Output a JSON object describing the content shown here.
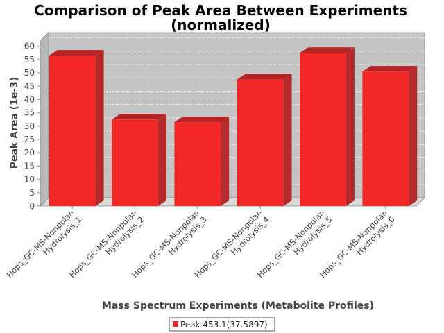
{
  "chart_data": {
    "type": "bar",
    "title_line1": "Comparison of Peak Area Between Experiments",
    "title_line2": "(normalized)",
    "xlabel": "Mass Spectrum Experiments (Metabolite Profiles)",
    "ylabel": "Peak Area (1e-3)",
    "ylim": [
      0,
      62
    ],
    "yticks": [
      0,
      5,
      10,
      15,
      20,
      25,
      30,
      35,
      40,
      45,
      50,
      55,
      60
    ],
    "grid": true,
    "legend_position": "bottom",
    "categories": [
      [
        "Hops_GC-MS-Nonpolar-",
        "Hydrolysis_1"
      ],
      [
        "Hops_GC-MS-Nonpolar-",
        "Hydrolysis_2"
      ],
      [
        "Hops_GC-MS-Nonpolar-",
        "Hydrolysis_3"
      ],
      [
        "Hops_GC-MS-Nonpolar-",
        "Hydrolysis_4"
      ],
      [
        "Hops_GC-MS-Nonpolar-",
        "Hydrolysis_5"
      ],
      [
        "Hops_GC-MS-Nonpolar-",
        "Hydrolysis_6"
      ]
    ],
    "series": [
      {
        "name": "Peak 453.1(37.5897)",
        "color": "#f02828",
        "values": [
          56.5,
          32.5,
          31.5,
          47.5,
          57.5,
          50.5
        ]
      }
    ]
  }
}
